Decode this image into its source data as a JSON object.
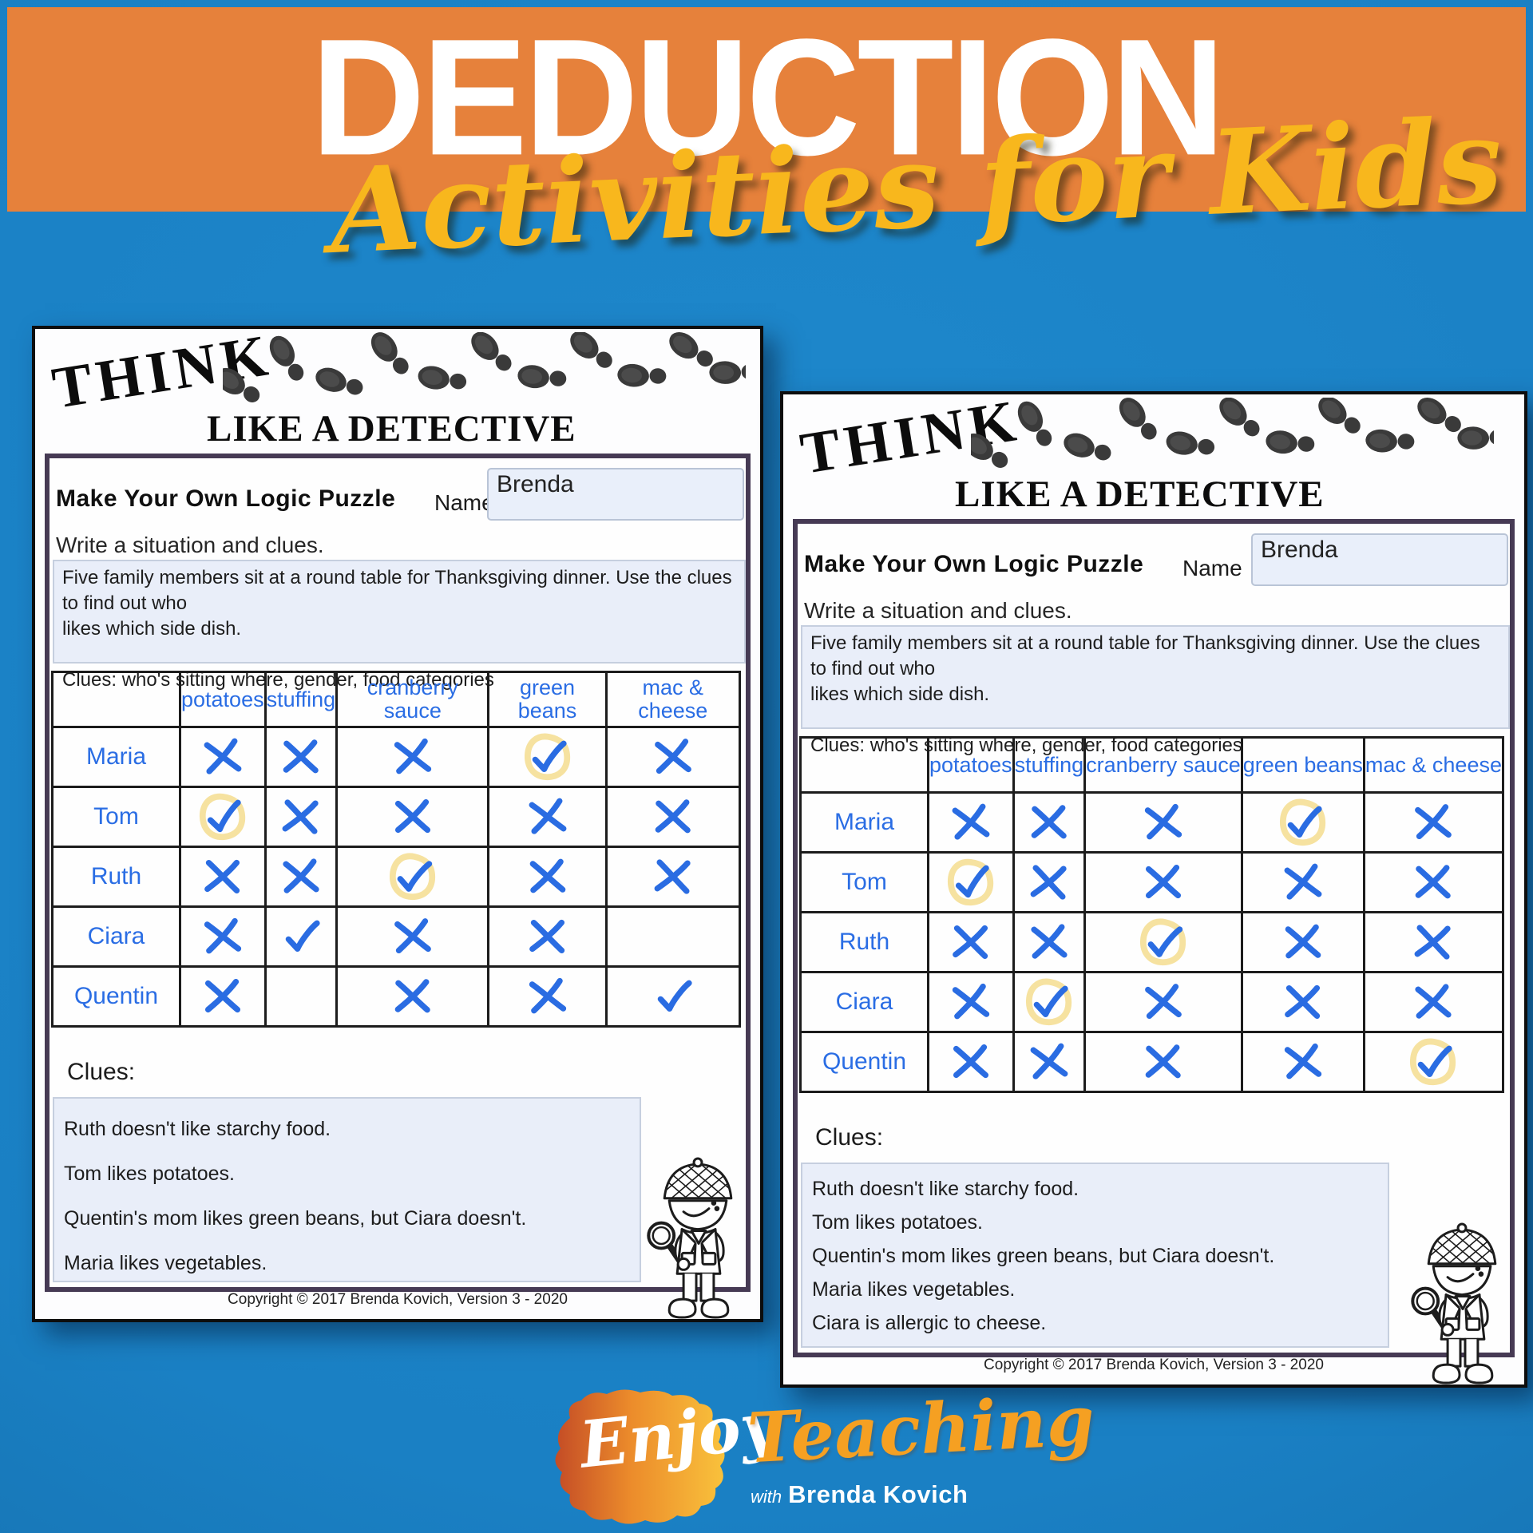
{
  "banner": {
    "title": "DEDUCTION",
    "subtitle": "Activities for Kids",
    "bg_color": "#e6813b",
    "subtitle_color": "#f8b71d"
  },
  "background_color": "#1a80c4",
  "sheet_common": {
    "header_word": "THINK",
    "header_rest": "LIKE A DETECTIVE",
    "worksheet_title": "Make Your Own Logic Puzzle",
    "name_label": "Name",
    "name_value": "Brenda",
    "prompt": "Write a situation and clues.",
    "situation_lines": [
      "Five family members sit at a round table for Thanksgiving dinner. Use the clues to find out who",
      "likes which side dish.",
      "",
      "Clues: who's sitting where, gender, food categories"
    ],
    "clues_label": "Clues:",
    "copyright": "Copyright © 2017 Brenda Kovich, Version 3 - 2020",
    "table_columns": [
      "potatoes",
      "stuffing",
      "cranberry sauce",
      "green beans",
      "mac & cheese"
    ],
    "mark_color": "#2a6ce2",
    "highlight_color": "#f6e2a0",
    "icons": [
      "footprints-icon",
      "detective-kid-icon"
    ]
  },
  "pages": [
    {
      "side": "left",
      "rows": [
        {
          "name": "Maria",
          "marks": [
            "x",
            "x",
            "x",
            "check_circled",
            "x"
          ]
        },
        {
          "name": "Tom",
          "marks": [
            "check_circled",
            "x",
            "x",
            "x",
            "x"
          ]
        },
        {
          "name": "Ruth",
          "marks": [
            "x",
            "x",
            "check_circled",
            "x",
            "x"
          ]
        },
        {
          "name": "Ciara",
          "marks": [
            "x",
            "check",
            "x",
            "x",
            "blank"
          ]
        },
        {
          "name": "Quentin",
          "marks": [
            "x",
            "blank",
            "x",
            "x",
            "check"
          ]
        }
      ],
      "clues": [
        "Ruth doesn't like starchy food.",
        "Tom likes potatoes.",
        "Quentin's mom likes green beans, but Ciara doesn't.",
        "Maria likes vegetables."
      ]
    },
    {
      "side": "right",
      "rows": [
        {
          "name": "Maria",
          "marks": [
            "x",
            "x",
            "x",
            "check_circled",
            "x"
          ]
        },
        {
          "name": "Tom",
          "marks": [
            "check_circled",
            "x",
            "x",
            "x",
            "x"
          ]
        },
        {
          "name": "Ruth",
          "marks": [
            "x",
            "x",
            "check_circled",
            "x",
            "x"
          ]
        },
        {
          "name": "Ciara",
          "marks": [
            "x",
            "check_circled",
            "x",
            "x",
            "x"
          ]
        },
        {
          "name": "Quentin",
          "marks": [
            "x",
            "x",
            "x",
            "x",
            "check_circled"
          ]
        }
      ],
      "clues": [
        "Ruth doesn't like starchy food.",
        "Tom likes potatoes.",
        "Quentin's mom likes green beans, but Ciara doesn't.",
        "Maria likes vegetables.",
        "Ciara is allergic to cheese."
      ]
    }
  ],
  "logo": {
    "script_word_1": "Enjoy",
    "script_word_2": "Teaching",
    "byline_prefix": "with",
    "byline_name": "Brenda Kovich"
  }
}
